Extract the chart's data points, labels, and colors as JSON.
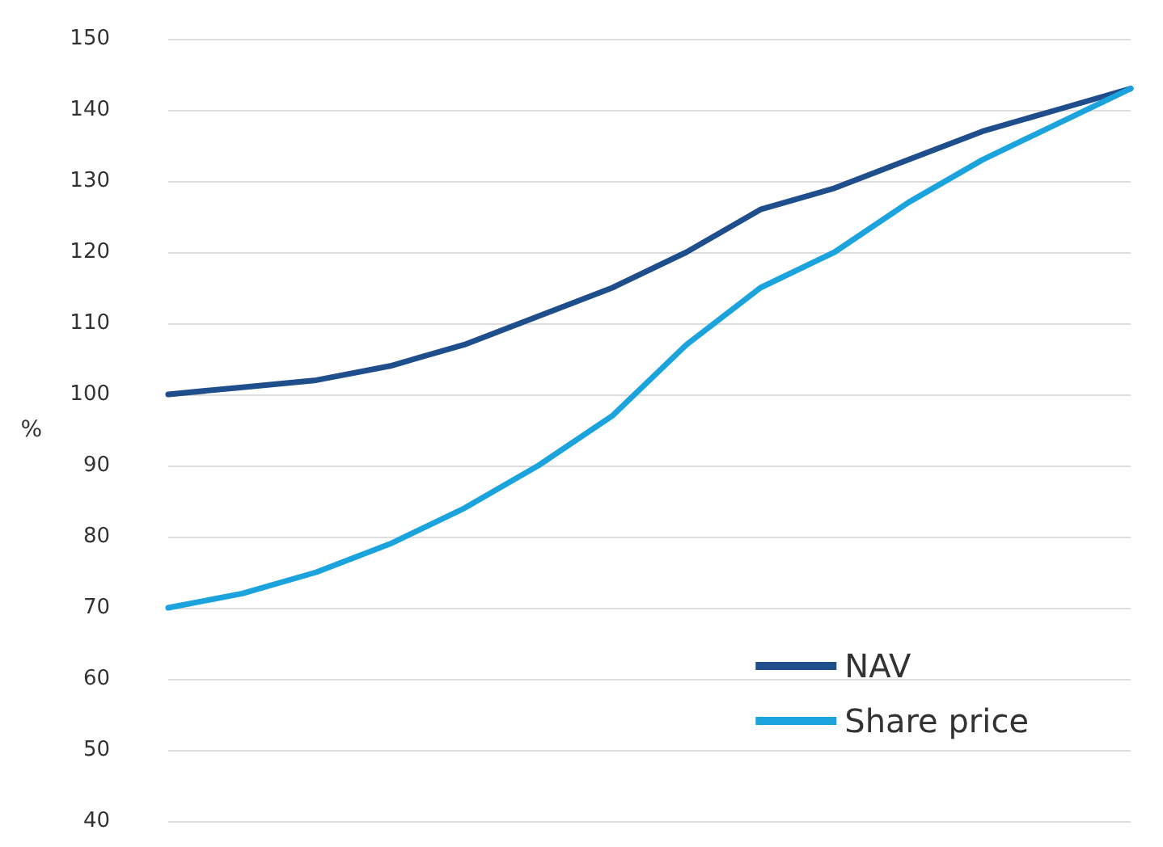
{
  "chart_data": {
    "type": "line",
    "ylabel": "%",
    "categories": [
      null,
      null,
      null,
      null,
      null,
      null,
      null,
      null,
      null,
      null,
      null,
      null,
      null,
      null
    ],
    "series": [
      {
        "name": "NAV",
        "color": "#1f4e8c",
        "values": [
          100,
          101,
          102,
          104,
          107,
          111,
          115,
          120,
          126,
          129,
          133,
          137,
          140,
          143
        ]
      },
      {
        "name": "Share price",
        "color": "#1aa3dc",
        "values": [
          70,
          72,
          75,
          79,
          84,
          90,
          97,
          107,
          115,
          120,
          127,
          133,
          138,
          143
        ]
      }
    ],
    "ylim": [
      40,
      150
    ],
    "yticks": [
      40,
      50,
      60,
      70,
      80,
      90,
      100,
      110,
      120,
      130,
      140,
      150
    ],
    "grid": "y",
    "legend": "bottom right",
    "marker": "none",
    "line_style": "solid"
  }
}
